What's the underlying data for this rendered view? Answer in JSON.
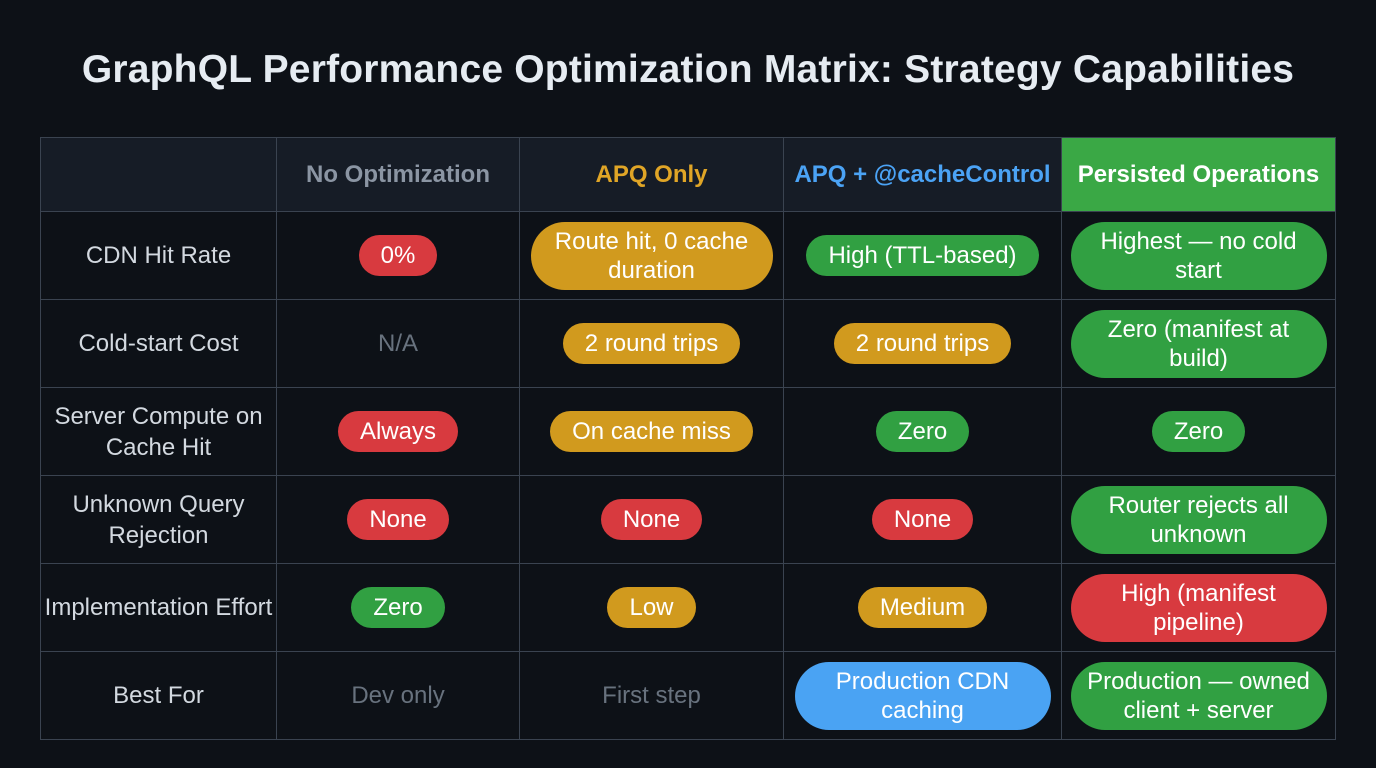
{
  "title": "GraphQL Performance Optimization Matrix: Strategy Capabilities",
  "columns": [
    {
      "label": "No Optimization",
      "color": "#8b95a3"
    },
    {
      "label": "APQ Only",
      "color": "#e0a526"
    },
    {
      "label": "APQ + @cacheControl",
      "color": "#4ba3f5"
    },
    {
      "label": "Persisted Operations",
      "color": "#ffffff",
      "background": "#3aa845"
    }
  ],
  "status_colors": {
    "red": "#d83a3f",
    "orange": "#d19a1e",
    "green": "#31a042",
    "blue": "#4aa3f3",
    "muted": "#68727e"
  },
  "rows": [
    {
      "label": "CDN Hit Rate",
      "cells": [
        {
          "text": "0%",
          "status": "red"
        },
        {
          "text": "Route hit, 0 cache duration",
          "status": "orange"
        },
        {
          "text": "High (TTL-based)",
          "status": "green"
        },
        {
          "text": "Highest — no cold start",
          "status": "green"
        }
      ]
    },
    {
      "label": "Cold-start Cost",
      "cells": [
        {
          "text": "N/A",
          "status": "muted"
        },
        {
          "text": "2 round trips",
          "status": "orange"
        },
        {
          "text": "2 round trips",
          "status": "orange"
        },
        {
          "text": "Zero (manifest at build)",
          "status": "green"
        }
      ]
    },
    {
      "label": "Server Compute on Cache Hit",
      "cells": [
        {
          "text": "Always",
          "status": "red"
        },
        {
          "text": "On cache miss",
          "status": "orange"
        },
        {
          "text": "Zero",
          "status": "green"
        },
        {
          "text": "Zero",
          "status": "green"
        }
      ]
    },
    {
      "label": "Unknown Query Rejection",
      "cells": [
        {
          "text": "None",
          "status": "red"
        },
        {
          "text": "None",
          "status": "red"
        },
        {
          "text": "None",
          "status": "red"
        },
        {
          "text": "Router rejects all unknown",
          "status": "green"
        }
      ]
    },
    {
      "label": "Implementation Effort",
      "cells": [
        {
          "text": "Zero",
          "status": "green"
        },
        {
          "text": "Low",
          "status": "orange"
        },
        {
          "text": "Medium",
          "status": "orange"
        },
        {
          "text": "High (manifest pipeline)",
          "status": "red"
        }
      ]
    },
    {
      "label": "Best For",
      "cells": [
        {
          "text": "Dev only",
          "status": "muted"
        },
        {
          "text": "First step",
          "status": "muted"
        },
        {
          "text": "Production CDN caching",
          "status": "blue"
        },
        {
          "text": "Production — owned client + server",
          "status": "green"
        }
      ]
    }
  ]
}
